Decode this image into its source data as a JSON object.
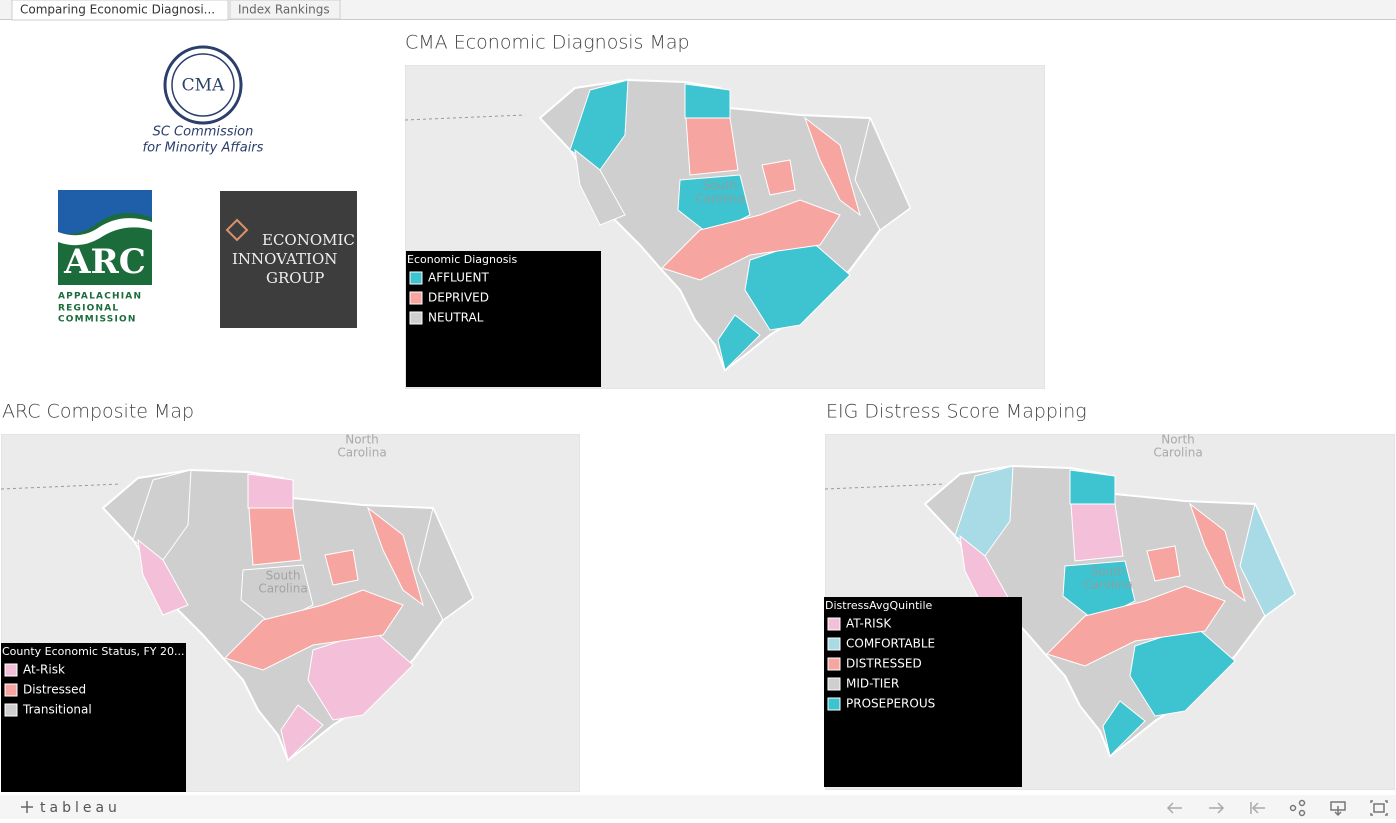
{
  "tabs": [
    "Comparing Economic Diagnosi...",
    "Index Rankings"
  ],
  "logos": {
    "cma": {
      "mark": "CMA",
      "lines": [
        "SC Commission",
        "for Minority Affairs"
      ]
    },
    "arc": {
      "mark": "ARC",
      "lines": [
        "APPALACHIAN",
        "REGIONAL",
        "COMMISSION"
      ]
    },
    "eig": {
      "lines": [
        "ECONOMIC",
        "INNOVATION",
        "GROUP"
      ]
    }
  },
  "maps": [
    {
      "title": "CMA Economic Diagnosis Map",
      "labels": [
        {
          "lines": [
            "South",
            "Carolina"
          ]
        }
      ],
      "legend": {
        "title": "Economic Diagnosis",
        "items": [
          {
            "label": "AFFLUENT",
            "color": "#3ec3d0"
          },
          {
            "label": "DEPRIVED",
            "color": "#f7a5a1"
          },
          {
            "label": "NEUTRAL",
            "color": "#cfcfcf"
          }
        ]
      }
    },
    {
      "title": "ARC Composite Map",
      "labels": [
        {
          "lines": [
            "North",
            "Carolina"
          ]
        },
        {
          "lines": [
            "South",
            "Carolina"
          ]
        }
      ],
      "legend": {
        "title": "County Economic Status, FY 20...",
        "items": [
          {
            "label": "At-Risk",
            "color": "#f4bfd8"
          },
          {
            "label": "Distressed",
            "color": "#f7a5a1"
          },
          {
            "label": "Transitional",
            "color": "#cfcfcf"
          }
        ]
      }
    },
    {
      "title": "EIG Distress Score Mapping",
      "labels": [
        {
          "lines": [
            "North",
            "Carolina"
          ]
        },
        {
          "lines": [
            "South",
            "Carolina"
          ]
        }
      ],
      "legend": {
        "title": "DistressAvgQuintile",
        "items": [
          {
            "label": "AT-RISK",
            "color": "#f4bfd8"
          },
          {
            "label": "COMFORTABLE",
            "color": "#a8dbe6"
          },
          {
            "label": "DISTRESSED",
            "color": "#f7a5a1"
          },
          {
            "label": "MID-TIER",
            "color": "#cfcfcf"
          },
          {
            "label": "PROSEPEROUS",
            "color": "#3ec3d0"
          }
        ]
      }
    }
  ],
  "footer": {
    "brand": "tableau"
  }
}
